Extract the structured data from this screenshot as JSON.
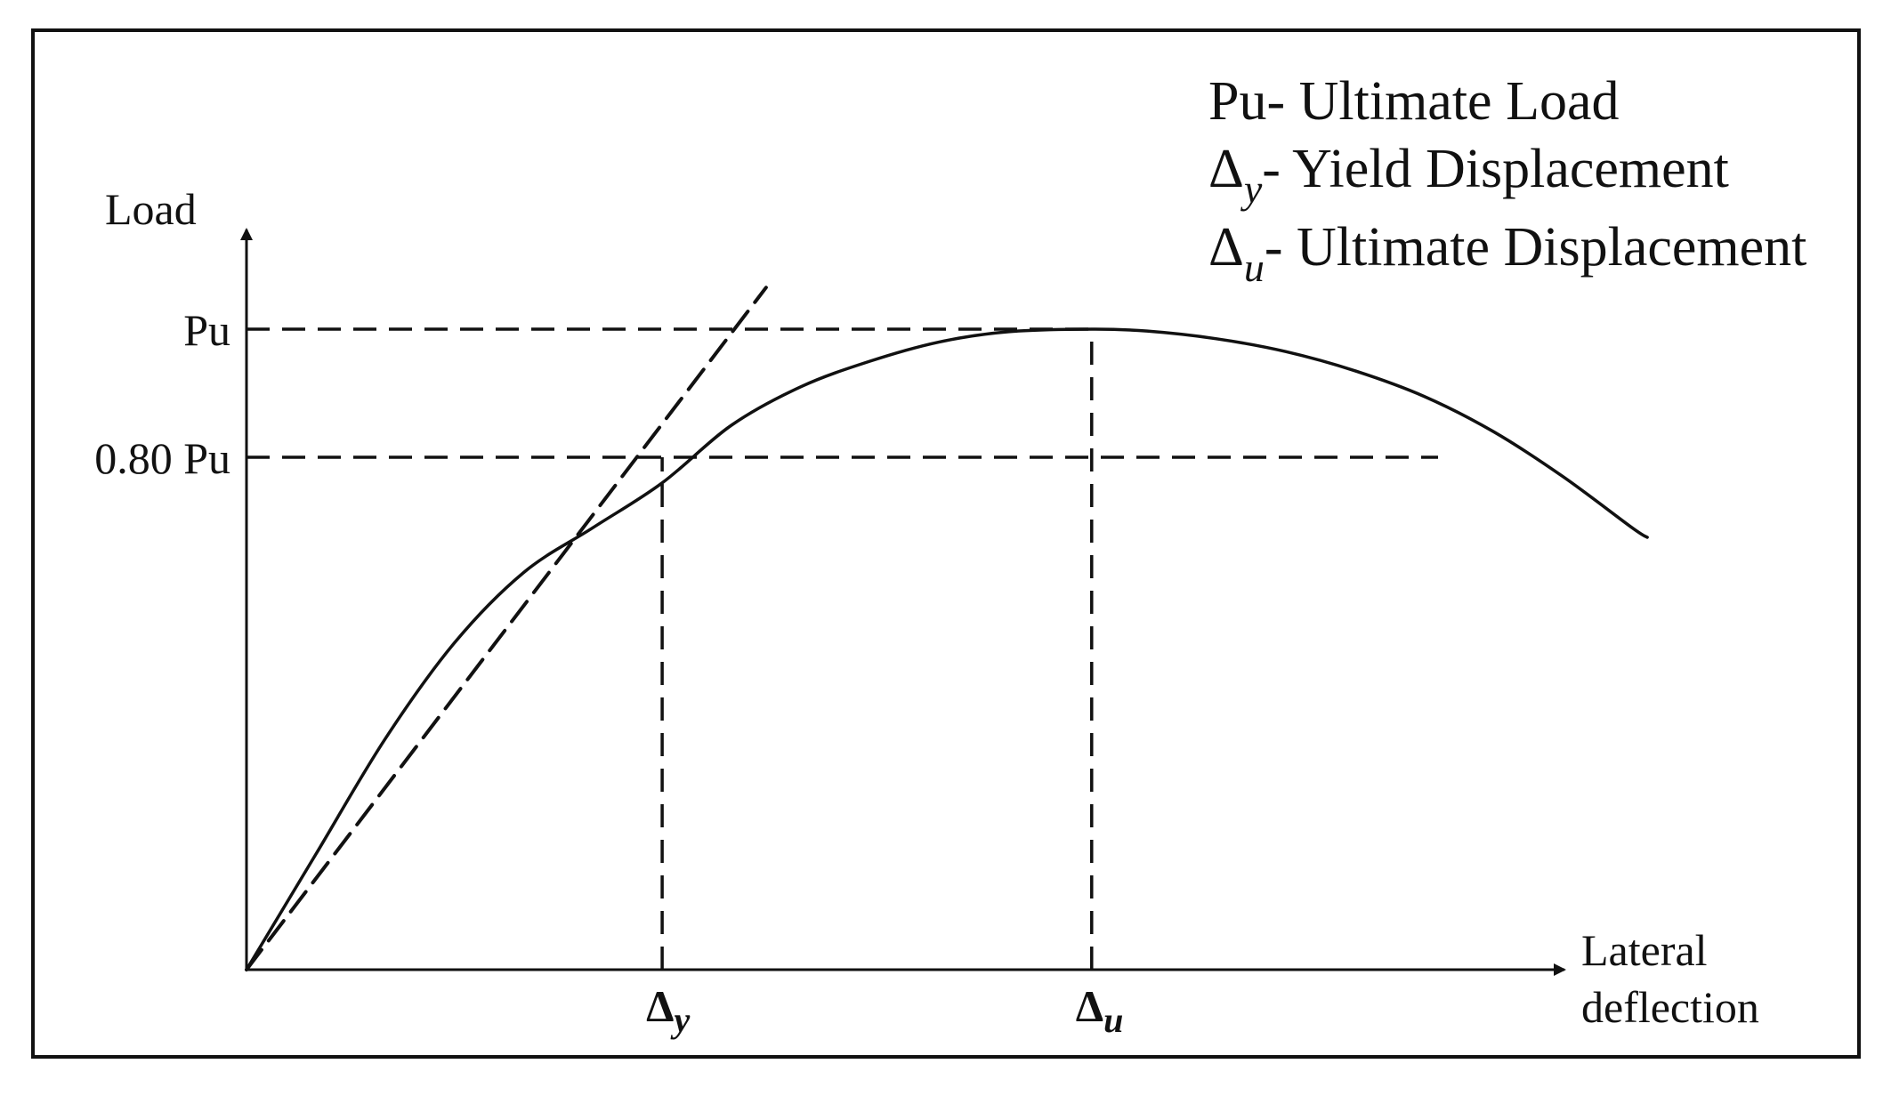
{
  "chart_data": {
    "type": "line",
    "title": "",
    "xlabel": [
      "Lateral",
      "deflection"
    ],
    "ylabel": "Load",
    "y_ticks": [
      {
        "label": "Pu",
        "value": 1.0
      },
      {
        "label": "0.80 Pu",
        "value": 0.8
      }
    ],
    "x_ticks": [
      {
        "main": "Δ",
        "sub": "y",
        "value": 0.3
      },
      {
        "main": "Δ",
        "sub": "u",
        "value": 0.61
      }
    ],
    "xlim": [
      0,
      1.07
    ],
    "ylim": [
      0,
      1.15
    ],
    "series": [
      {
        "style": "solid",
        "x": [
          0,
          0.05,
          0.1,
          0.15,
          0.2,
          0.25,
          0.3,
          0.35,
          0.4,
          0.45,
          0.5,
          0.55,
          0.61,
          0.65,
          0.7,
          0.75,
          0.8,
          0.85,
          0.9,
          0.95,
          1.0,
          1.011
        ],
        "y": [
          0,
          0.18,
          0.36,
          0.51,
          0.62,
          0.69,
          0.76,
          0.85,
          0.91,
          0.95,
          0.98,
          0.996,
          1.0,
          0.997,
          0.985,
          0.965,
          0.935,
          0.895,
          0.84,
          0.77,
          0.69,
          0.675
        ]
      },
      {
        "style": "dashed",
        "x": [
          0,
          0.375
        ],
        "y": [
          0,
          1.065
        ]
      }
    ],
    "guides": [
      {
        "type": "horizontal",
        "y": 1.0,
        "x_from": 0,
        "x_to": 0.61
      },
      {
        "type": "horizontal",
        "y": 0.8,
        "x_from": 0,
        "x_to": 0.86
      },
      {
        "type": "vertical",
        "x": 0.3,
        "y_from": 0,
        "y_to": 0.8
      },
      {
        "type": "vertical",
        "x": 0.61,
        "y_from": 0,
        "y_to": 1.0
      }
    ],
    "legend": {
      "placement": "top-right",
      "entries": [
        {
          "symbol": "Pu",
          "sub": "",
          "text": "- Ultimate Load"
        },
        {
          "symbol": "Δ",
          "sub": "y",
          "text": "- Yield Displacement"
        },
        {
          "symbol": "Δ",
          "sub": "u",
          "text": "- Ultimate Displacement"
        }
      ]
    },
    "grid": false,
    "colors": {
      "ink": "#111111",
      "background": "#ffffff"
    }
  }
}
